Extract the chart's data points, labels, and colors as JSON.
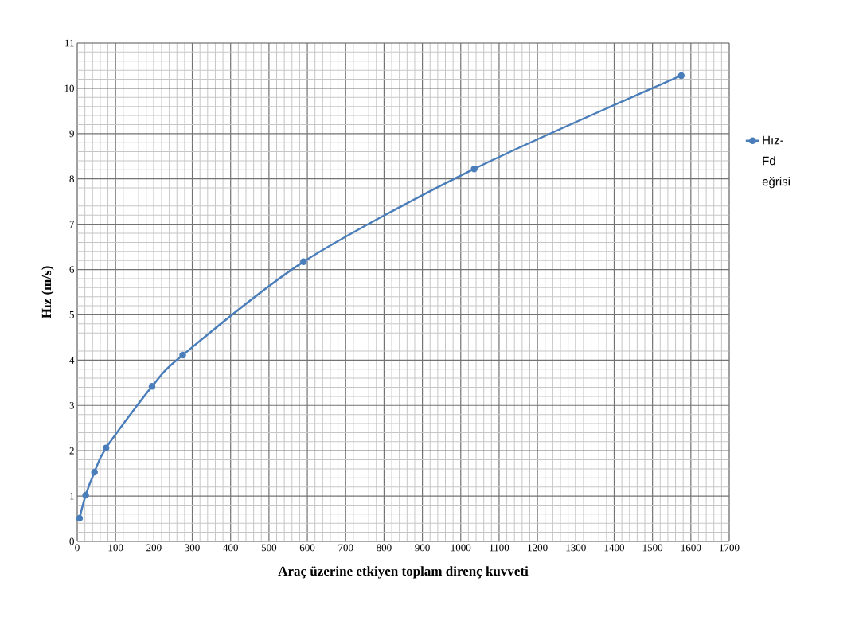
{
  "chart_data": {
    "type": "line",
    "xlabel": "Araç üzerine etkiyen toplam direnç kuvveti",
    "ylabel": "Hız (m/s)",
    "x": [
      6,
      22,
      45,
      75,
      195,
      275,
      590,
      1035,
      1575
    ],
    "series": [
      {
        "name": "Hız-Fd eğrisi",
        "color": "#4a7ebb",
        "values": [
          0.51,
          1.02,
          1.53,
          2.06,
          3.42,
          4.11,
          6.17,
          8.22,
          10.28
        ]
      }
    ],
    "xlim": [
      0,
      1700
    ],
    "xticks": [
      0,
      100,
      200,
      300,
      400,
      500,
      600,
      700,
      800,
      900,
      1000,
      1100,
      1200,
      1300,
      1400,
      1500,
      1600,
      1700
    ],
    "ylim": [
      0,
      11
    ],
    "yticks": [
      0,
      1,
      2,
      3,
      4,
      5,
      6,
      7,
      8,
      9,
      10,
      11
    ],
    "grid": true,
    "legend": "right",
    "marker": "circle",
    "line_style": "solid"
  }
}
